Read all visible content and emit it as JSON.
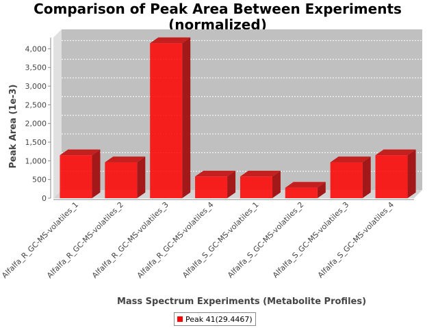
{
  "chart_data": {
    "type": "bar",
    "title_lines": [
      "Comparison of Peak Area Between Experiments",
      "(normalized)"
    ],
    "xlabel": "Mass Spectrum Experiments (Metabolite Profiles)",
    "ylabel": "Peak Area (1e-3)",
    "categories": [
      "Alfalfa_R_GC-MS-volatiles_1",
      "Alfalfa_R_GC-MS-volatiles_2",
      "Alfalfa_R_GC-MS-volatiles_3",
      "Alfalfa_R_GC-MS-volatiles_4",
      "Alfalfa_S_GC-MS-volatiles_1",
      "Alfalfa_S_GC-MS-volatiles_2",
      "Alfalfa_S_GC-MS-volatiles_3",
      "Alfalfa_S_GC-MS-volatiles_4"
    ],
    "series": [
      {
        "name": "Peak 41(29.4467)",
        "values": [
          1150,
          960,
          4150,
          580,
          580,
          280,
          960,
          1150
        ],
        "color": "#ff0000"
      }
    ],
    "yticks": [
      0,
      500,
      1000,
      1500,
      2000,
      2500,
      3000,
      3500,
      4000
    ],
    "ytick_labels": [
      "0",
      "500",
      "1,000",
      "1,500",
      "2,000",
      "2,500",
      "3,000",
      "3,500",
      "4,000"
    ],
    "ylim": [
      0,
      4300
    ],
    "grid": true,
    "legend_position": "bottom",
    "plot_background": "#c0c0c0"
  }
}
